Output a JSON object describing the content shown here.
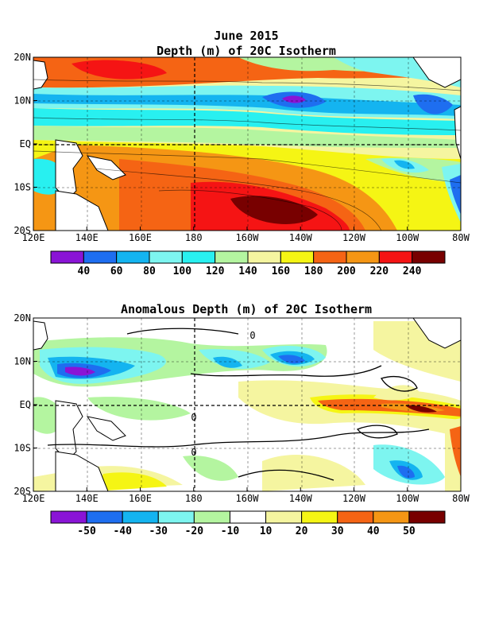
{
  "figure": {
    "title_line1": "June 2015",
    "title_line2": "Depth (m) of 20C Isotherm",
    "title_anomaly": "Anomalous Depth (m) of 20C Isotherm"
  },
  "map_axes": {
    "lon_labels": [
      "120E",
      "140E",
      "160E",
      "180",
      "160W",
      "140W",
      "120W",
      "100W",
      "80W"
    ],
    "lat_labels": [
      "20N",
      "10N",
      "EQ",
      "10S",
      "20S"
    ]
  },
  "depth_colorbar": {
    "labels": [
      "40",
      "60",
      "80",
      "100",
      "120",
      "140",
      "160",
      "180",
      "200",
      "220",
      "240"
    ],
    "colors": [
      "#8a14d6",
      "#1e6ef0",
      "#14b4f0",
      "#7df5f0",
      "#28f0f0",
      "#b4f5a0",
      "#f5f5a0",
      "#f5f514",
      "#f56414",
      "#f59614",
      "#f51414",
      "#780000"
    ]
  },
  "anomaly_colorbar": {
    "labels": [
      "-50",
      "-40",
      "-30",
      "-20",
      "-10",
      "10",
      "20",
      "30",
      "40",
      "50"
    ],
    "colors": [
      "#8a14d6",
      "#1e6ef0",
      "#14b4f0",
      "#7df5f0",
      "#b4f5a0",
      "#ffffff",
      "#f5f5a0",
      "#f5f514",
      "#f56414",
      "#f59614",
      "#780000"
    ]
  },
  "contour_labels": {
    "zero": "0"
  }
}
